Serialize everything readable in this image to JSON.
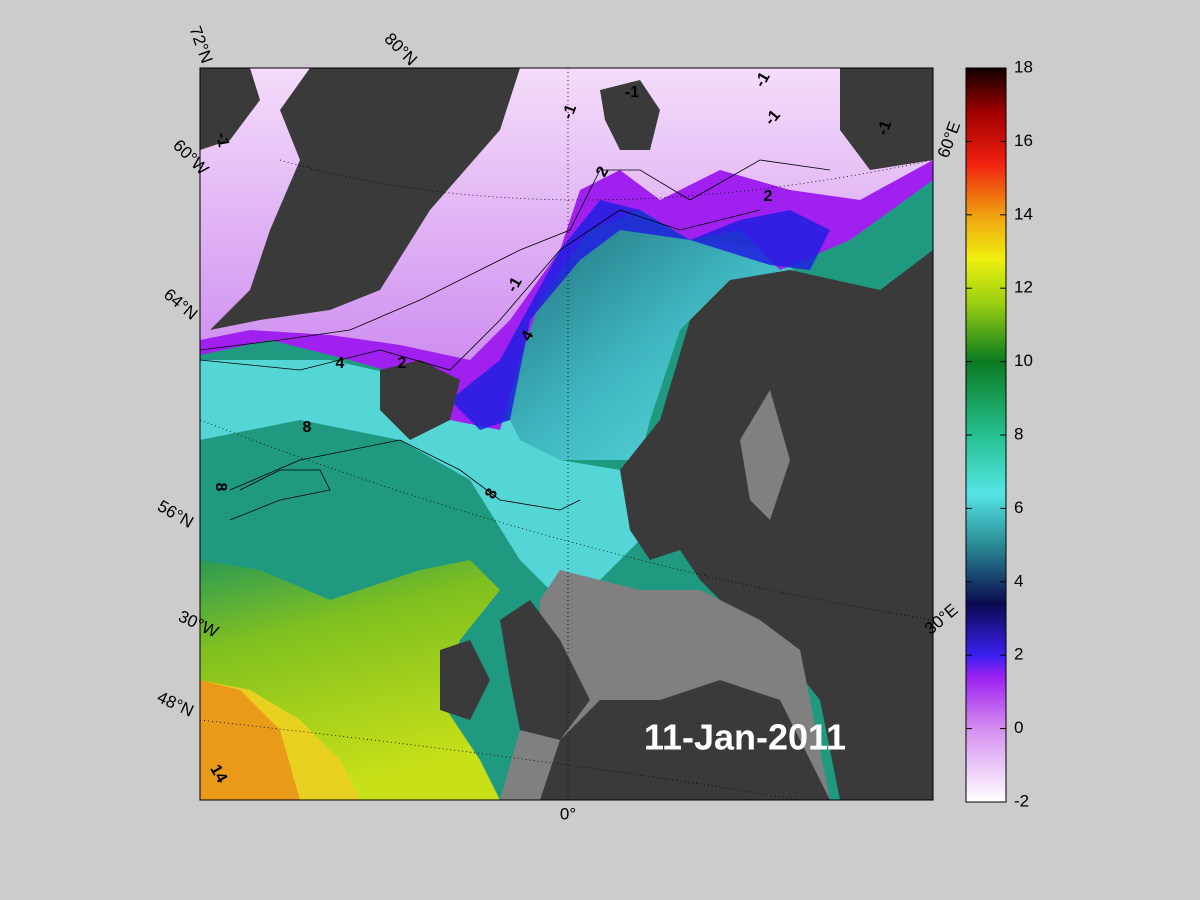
{
  "map": {
    "lat_labels": [
      "72°N",
      "80°N",
      "64°N",
      "56°N",
      "48°N"
    ],
    "lon_labels": [
      "60°W",
      "30°W",
      "0°",
      "30°E",
      "60°E"
    ],
    "date": "11-Jan-2011",
    "contour_labels": [
      "-1",
      "-1",
      "-1",
      "-1",
      "-1",
      "-1",
      "-1",
      "2",
      "2",
      "2",
      "4",
      "4",
      "8",
      "8",
      "8",
      "14"
    ]
  },
  "colorbar": {
    "lim": [
      -2,
      18
    ],
    "ticks": [
      -2,
      0,
      2,
      4,
      6,
      8,
      10,
      12,
      14,
      16,
      18
    ]
  }
}
